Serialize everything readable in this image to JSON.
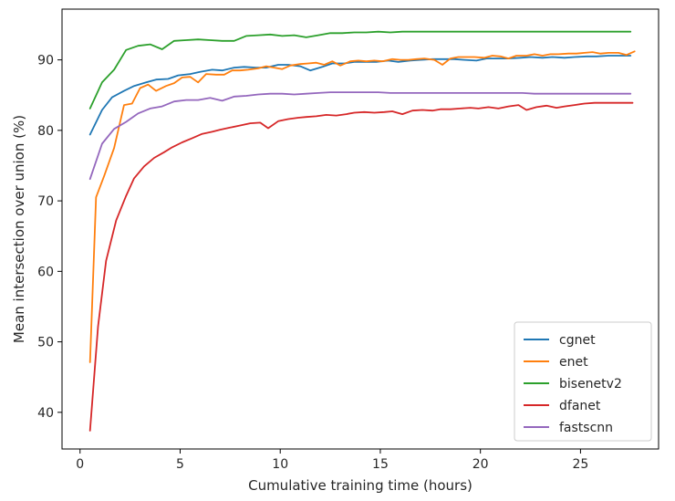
{
  "chart_data": {
    "type": "line",
    "xlabel": "Cumulative training time (hours)",
    "ylabel": "Mean intersection over union (%)",
    "xlim": [
      -0.9,
      28.9
    ],
    "ylim": [
      34.8,
      97.2
    ],
    "xticks": [
      0,
      5,
      10,
      15,
      20,
      25
    ],
    "yticks": [
      40,
      50,
      60,
      70,
      80,
      90
    ],
    "grid": false,
    "legend_position": "bottom-right",
    "series": [
      {
        "name": "cgnet",
        "color": "#1f77b4",
        "x": [
          0.5,
          1.1,
          1.6,
          2.2,
          2.7,
          3.3,
          3.8,
          4.4,
          4.9,
          5.5,
          6.0,
          6.6,
          7.1,
          7.7,
          8.2,
          8.8,
          9.3,
          9.9,
          10.4,
          11.0,
          11.5,
          12.1,
          12.6,
          13.2,
          13.7,
          14.3,
          14.8,
          15.4,
          15.9,
          16.5,
          17.0,
          17.6,
          18.1,
          18.7,
          19.2,
          19.8,
          20.3,
          20.9,
          21.4,
          22.0,
          22.5,
          23.1,
          23.6,
          24.2,
          24.7,
          25.3,
          25.8,
          26.4,
          26.9,
          27.5
        ],
        "y": [
          79.4,
          82.9,
          84.7,
          85.6,
          86.3,
          86.8,
          87.2,
          87.3,
          87.8,
          88.0,
          88.3,
          88.6,
          88.5,
          88.9,
          89.0,
          88.9,
          88.9,
          89.3,
          89.3,
          89.1,
          88.5,
          89.0,
          89.5,
          89.5,
          89.7,
          89.7,
          89.7,
          89.9,
          89.7,
          89.9,
          90.0,
          90.1,
          90.1,
          90.1,
          90.0,
          89.9,
          90.2,
          90.2,
          90.2,
          90.3,
          90.4,
          90.3,
          90.4,
          90.3,
          90.4,
          90.5,
          90.5,
          90.6,
          90.6,
          90.6
        ]
      },
      {
        "name": "enet",
        "color": "#ff7f0e",
        "x": [
          0.5,
          0.8,
          1.2,
          1.7,
          2.2,
          2.6,
          3.0,
          3.4,
          3.8,
          4.3,
          4.7,
          5.1,
          5.5,
          5.9,
          6.3,
          6.8,
          7.2,
          7.6,
          8.0,
          8.4,
          8.9,
          9.3,
          9.7,
          10.1,
          10.5,
          11.0,
          11.4,
          11.8,
          12.2,
          12.6,
          13.0,
          13.5,
          13.9,
          14.3,
          14.7,
          15.1,
          15.6,
          16.0,
          16.4,
          16.8,
          17.2,
          17.7,
          18.1,
          18.5,
          18.9,
          19.3,
          19.7,
          20.2,
          20.6,
          21.0,
          21.4,
          21.8,
          22.3,
          22.7,
          23.1,
          23.5,
          23.9,
          24.4,
          24.8,
          25.2,
          25.6,
          26.0,
          26.4,
          26.9,
          27.3,
          27.7
        ],
        "y": [
          47.1,
          70.5,
          73.5,
          77.5,
          83.6,
          83.8,
          86.0,
          86.5,
          85.6,
          86.3,
          86.7,
          87.5,
          87.6,
          86.8,
          88.0,
          87.9,
          87.9,
          88.5,
          88.5,
          88.6,
          88.8,
          89.1,
          88.9,
          88.7,
          89.2,
          89.4,
          89.5,
          89.6,
          89.3,
          89.8,
          89.2,
          89.8,
          89.9,
          89.8,
          89.9,
          89.8,
          90.1,
          90.0,
          90.0,
          90.1,
          90.2,
          90.0,
          89.3,
          90.2,
          90.4,
          90.4,
          90.4,
          90.3,
          90.6,
          90.5,
          90.2,
          90.6,
          90.6,
          90.8,
          90.6,
          90.8,
          90.8,
          90.9,
          90.9,
          91.0,
          91.1,
          90.9,
          91.0,
          91.0,
          90.7,
          91.2
        ]
      },
      {
        "name": "bisenetv2",
        "color": "#2ca02c",
        "x": [
          0.5,
          1.1,
          1.7,
          2.3,
          2.9,
          3.5,
          4.1,
          4.7,
          5.3,
          5.9,
          6.5,
          7.1,
          7.7,
          8.3,
          8.9,
          9.5,
          10.1,
          10.7,
          11.3,
          11.9,
          12.5,
          13.1,
          13.7,
          14.3,
          14.9,
          15.5,
          16.1,
          16.7,
          17.3,
          17.9,
          18.5,
          19.1,
          19.7,
          20.3,
          20.9,
          21.5,
          22.1,
          22.7,
          23.3,
          23.9,
          24.5,
          25.1,
          25.7,
          26.3,
          26.9,
          27.5
        ],
        "y": [
          83.1,
          86.8,
          88.6,
          91.4,
          92.0,
          92.2,
          91.5,
          92.7,
          92.8,
          92.9,
          92.8,
          92.7,
          92.7,
          93.4,
          93.5,
          93.6,
          93.4,
          93.5,
          93.2,
          93.5,
          93.8,
          93.8,
          93.9,
          93.9,
          94.0,
          93.9,
          94.0,
          94.0,
          94.0,
          94.0,
          94.0,
          94.0,
          94.0,
          94.0,
          94.0,
          94.0,
          94.0,
          94.0,
          94.0,
          94.0,
          94.0,
          94.0,
          94.0,
          94.0,
          94.0,
          94.0
        ]
      },
      {
        "name": "dfanet",
        "color": "#d62728",
        "x": [
          0.5,
          0.9,
          1.3,
          1.8,
          2.3,
          2.7,
          3.2,
          3.7,
          4.2,
          4.6,
          5.1,
          5.6,
          6.1,
          6.6,
          7.0,
          7.5,
          8.0,
          8.5,
          9.0,
          9.4,
          9.9,
          10.4,
          10.9,
          11.3,
          11.8,
          12.3,
          12.8,
          13.3,
          13.7,
          14.2,
          14.7,
          15.2,
          15.6,
          16.1,
          16.6,
          17.1,
          17.6,
          18.0,
          18.5,
          19.0,
          19.5,
          19.9,
          20.4,
          20.9,
          21.4,
          21.9,
          22.3,
          22.8,
          23.3,
          23.8,
          24.2,
          24.7,
          25.2,
          25.7,
          26.2,
          26.6,
          27.1,
          27.6
        ],
        "y": [
          37.4,
          52.2,
          61.5,
          67.2,
          70.7,
          73.2,
          74.9,
          76.1,
          76.9,
          77.6,
          78.3,
          78.9,
          79.5,
          79.8,
          80.1,
          80.4,
          80.7,
          81.0,
          81.1,
          80.3,
          81.3,
          81.6,
          81.8,
          81.9,
          82.0,
          82.2,
          82.1,
          82.3,
          82.5,
          82.6,
          82.5,
          82.6,
          82.7,
          82.3,
          82.8,
          82.9,
          82.8,
          83.0,
          83.0,
          83.1,
          83.2,
          83.1,
          83.3,
          83.1,
          83.4,
          83.6,
          82.9,
          83.3,
          83.5,
          83.2,
          83.4,
          83.6,
          83.8,
          83.9,
          83.9,
          83.9,
          83.9,
          83.9
        ]
      },
      {
        "name": "fastscnn",
        "color": "#9467bd",
        "x": [
          0.5,
          1.1,
          1.7,
          2.3,
          2.9,
          3.5,
          4.1,
          4.7,
          5.3,
          5.9,
          6.5,
          7.1,
          7.7,
          8.3,
          8.9,
          9.5,
          10.1,
          10.7,
          11.3,
          11.9,
          12.5,
          13.1,
          13.7,
          14.3,
          14.9,
          15.5,
          16.1,
          16.7,
          17.3,
          17.9,
          18.5,
          19.1,
          19.7,
          20.3,
          20.9,
          21.5,
          22.1,
          22.7,
          23.3,
          23.9,
          24.5,
          25.1,
          25.7,
          26.3,
          26.9,
          27.5
        ],
        "y": [
          73.1,
          78.1,
          80.2,
          81.2,
          82.4,
          83.1,
          83.4,
          84.1,
          84.3,
          84.3,
          84.6,
          84.2,
          84.8,
          84.9,
          85.1,
          85.2,
          85.2,
          85.1,
          85.2,
          85.3,
          85.4,
          85.4,
          85.4,
          85.4,
          85.4,
          85.3,
          85.3,
          85.3,
          85.3,
          85.3,
          85.3,
          85.3,
          85.3,
          85.3,
          85.3,
          85.3,
          85.3,
          85.2,
          85.2,
          85.2,
          85.2,
          85.2,
          85.2,
          85.2,
          85.2,
          85.2
        ]
      }
    ]
  }
}
